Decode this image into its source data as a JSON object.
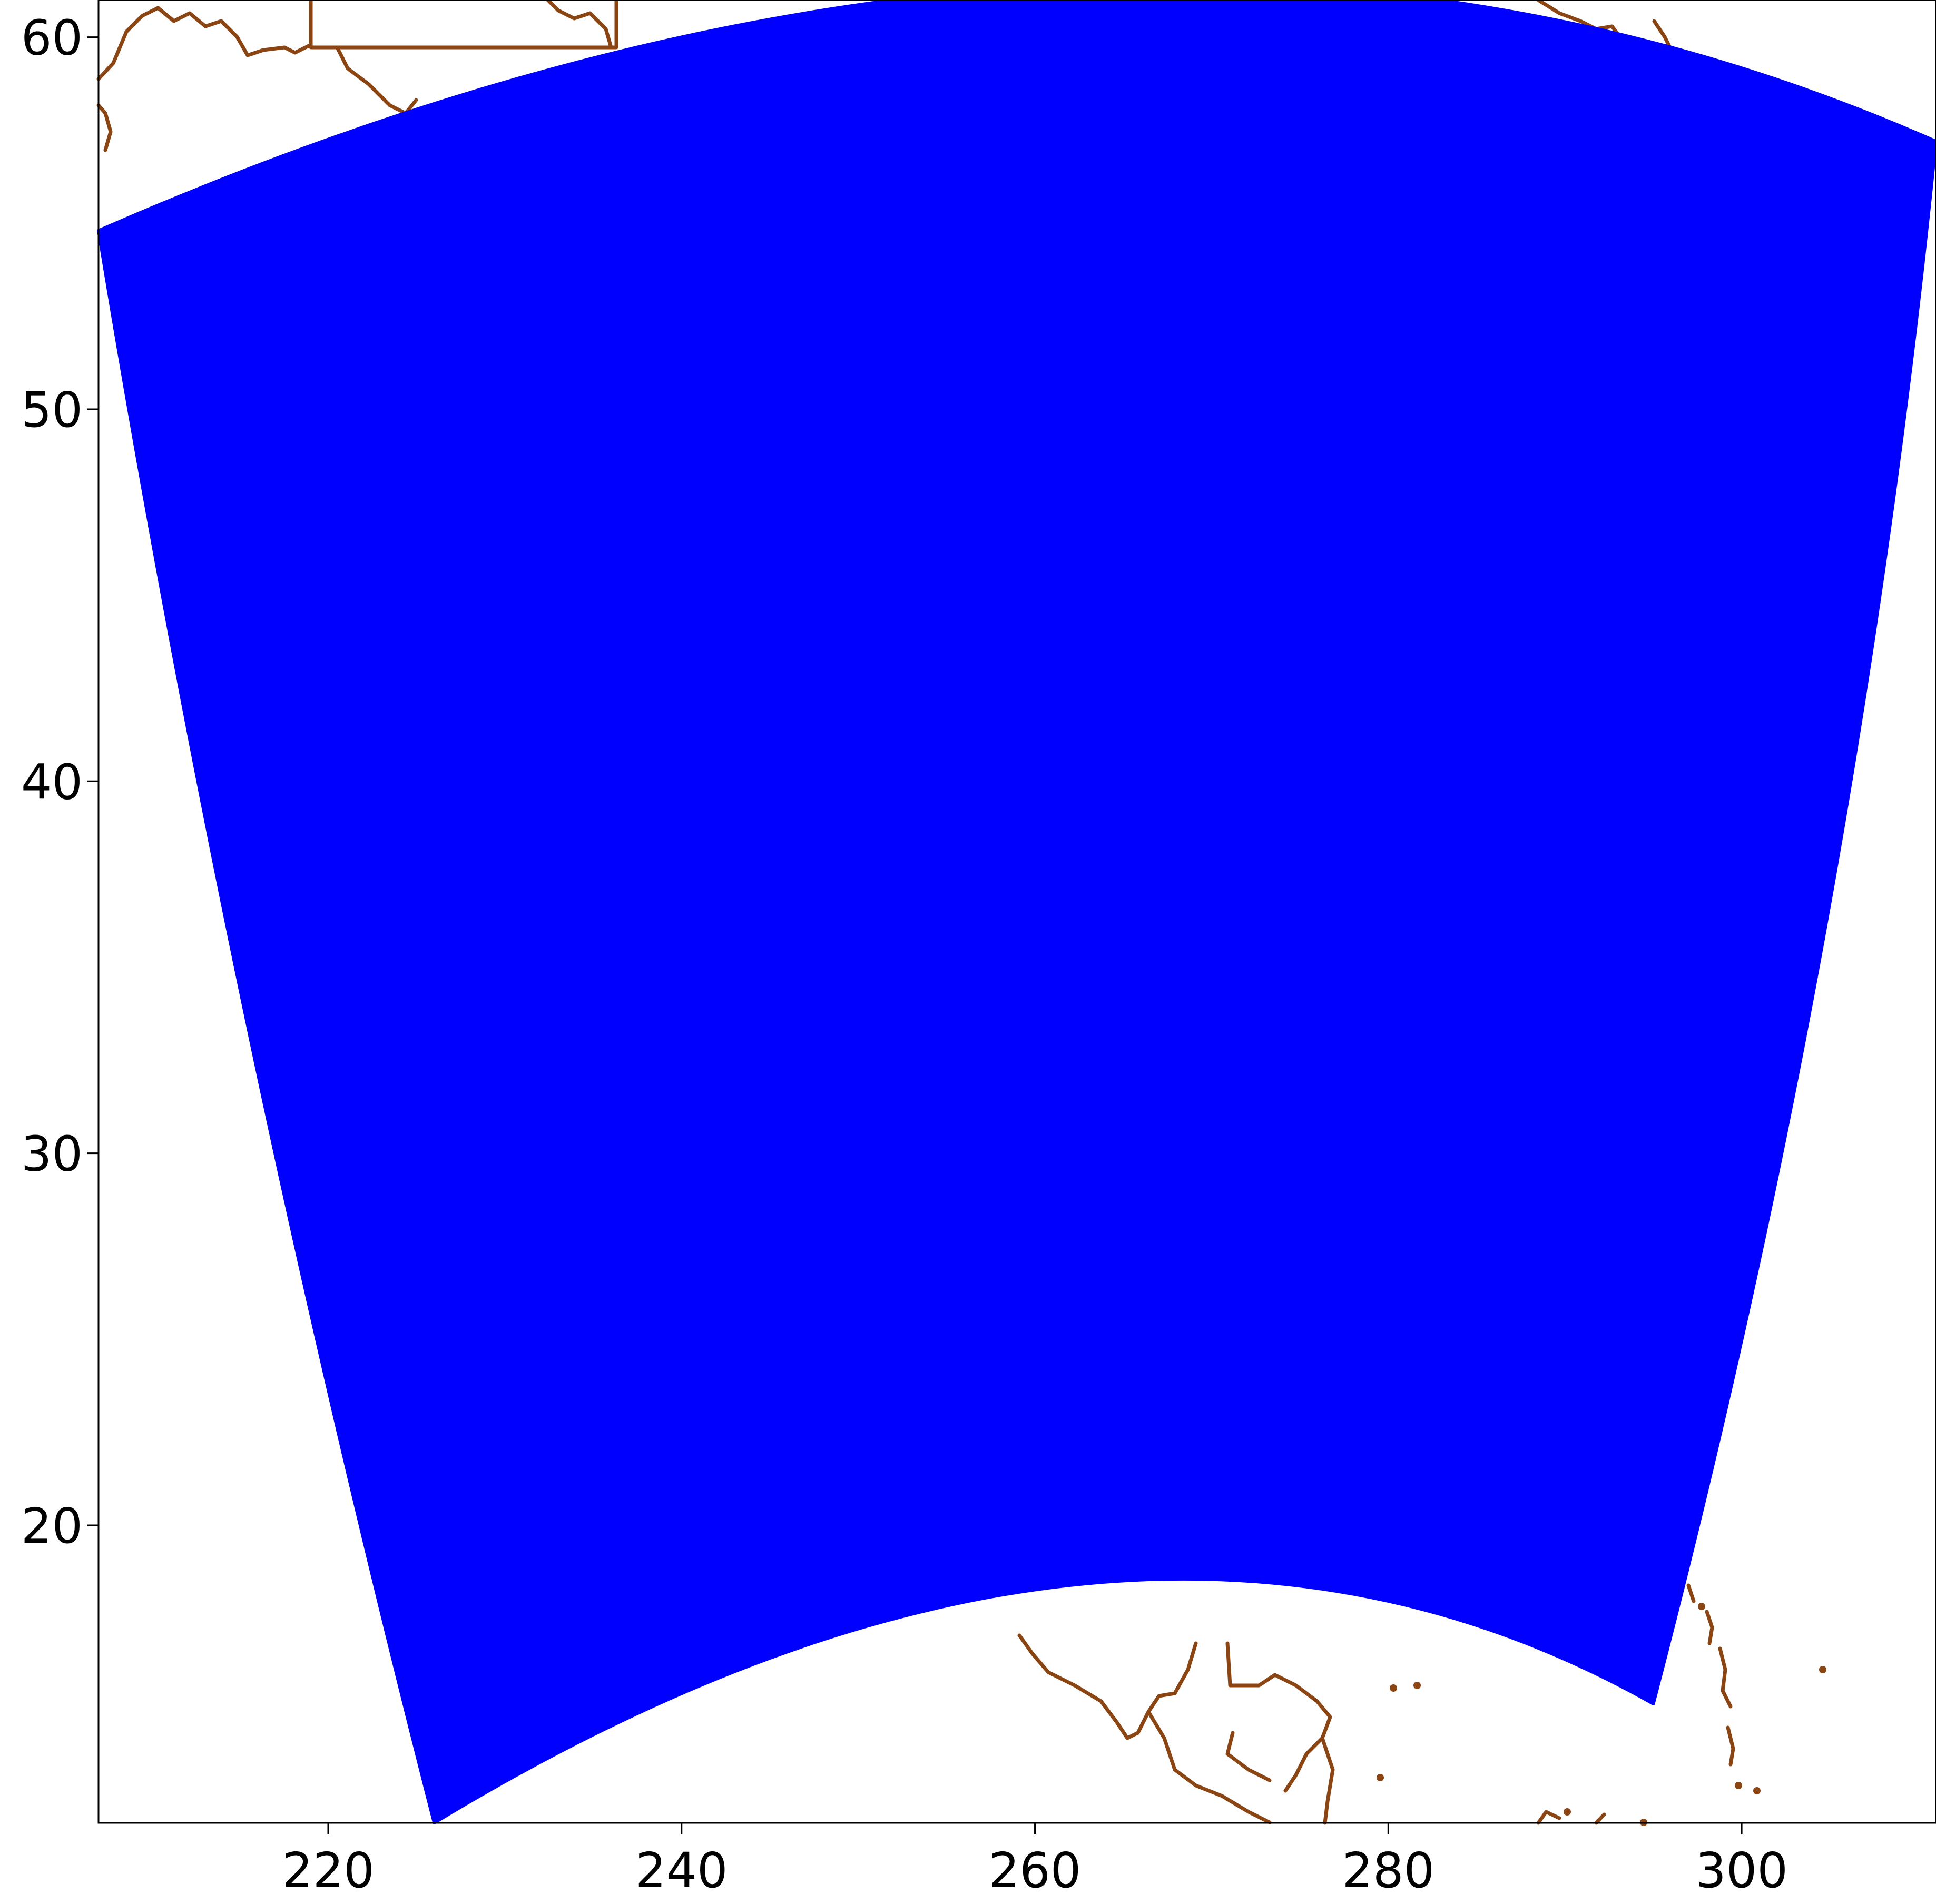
{
  "map": {
    "type": "map",
    "projection": "lambert-conformal-domain-footprint",
    "colors": {
      "domain_fill": "#0000ff",
      "coastline": "#8b4513",
      "frame": "#000000",
      "background": "#ffffff"
    },
    "xlim": [
      207,
      311
    ],
    "ylim": [
      12,
      61
    ],
    "x_ticks": [
      {
        "value": 220,
        "label": "220"
      },
      {
        "value": 240,
        "label": "240"
      },
      {
        "value": 260,
        "label": "260"
      },
      {
        "value": 280,
        "label": "280"
      },
      {
        "value": 300,
        "label": "300"
      }
    ],
    "y_ticks": [
      {
        "value": 20,
        "label": "20"
      },
      {
        "value": 30,
        "label": "30"
      },
      {
        "value": 40,
        "label": "40"
      },
      {
        "value": 50,
        "label": "50"
      },
      {
        "value": 60,
        "label": "60"
      }
    ],
    "domain": {
      "corners": {
        "top_left": [
          207,
          54.8
        ],
        "top_mid": [
          265,
          61.0
        ],
        "top_right": [
          311,
          57.2
        ],
        "bottom_right": [
          295,
          15.2
        ],
        "bottom_mid": [
          265,
          18.0
        ],
        "bottom_left": [
          226,
          12.0
        ]
      }
    }
  }
}
